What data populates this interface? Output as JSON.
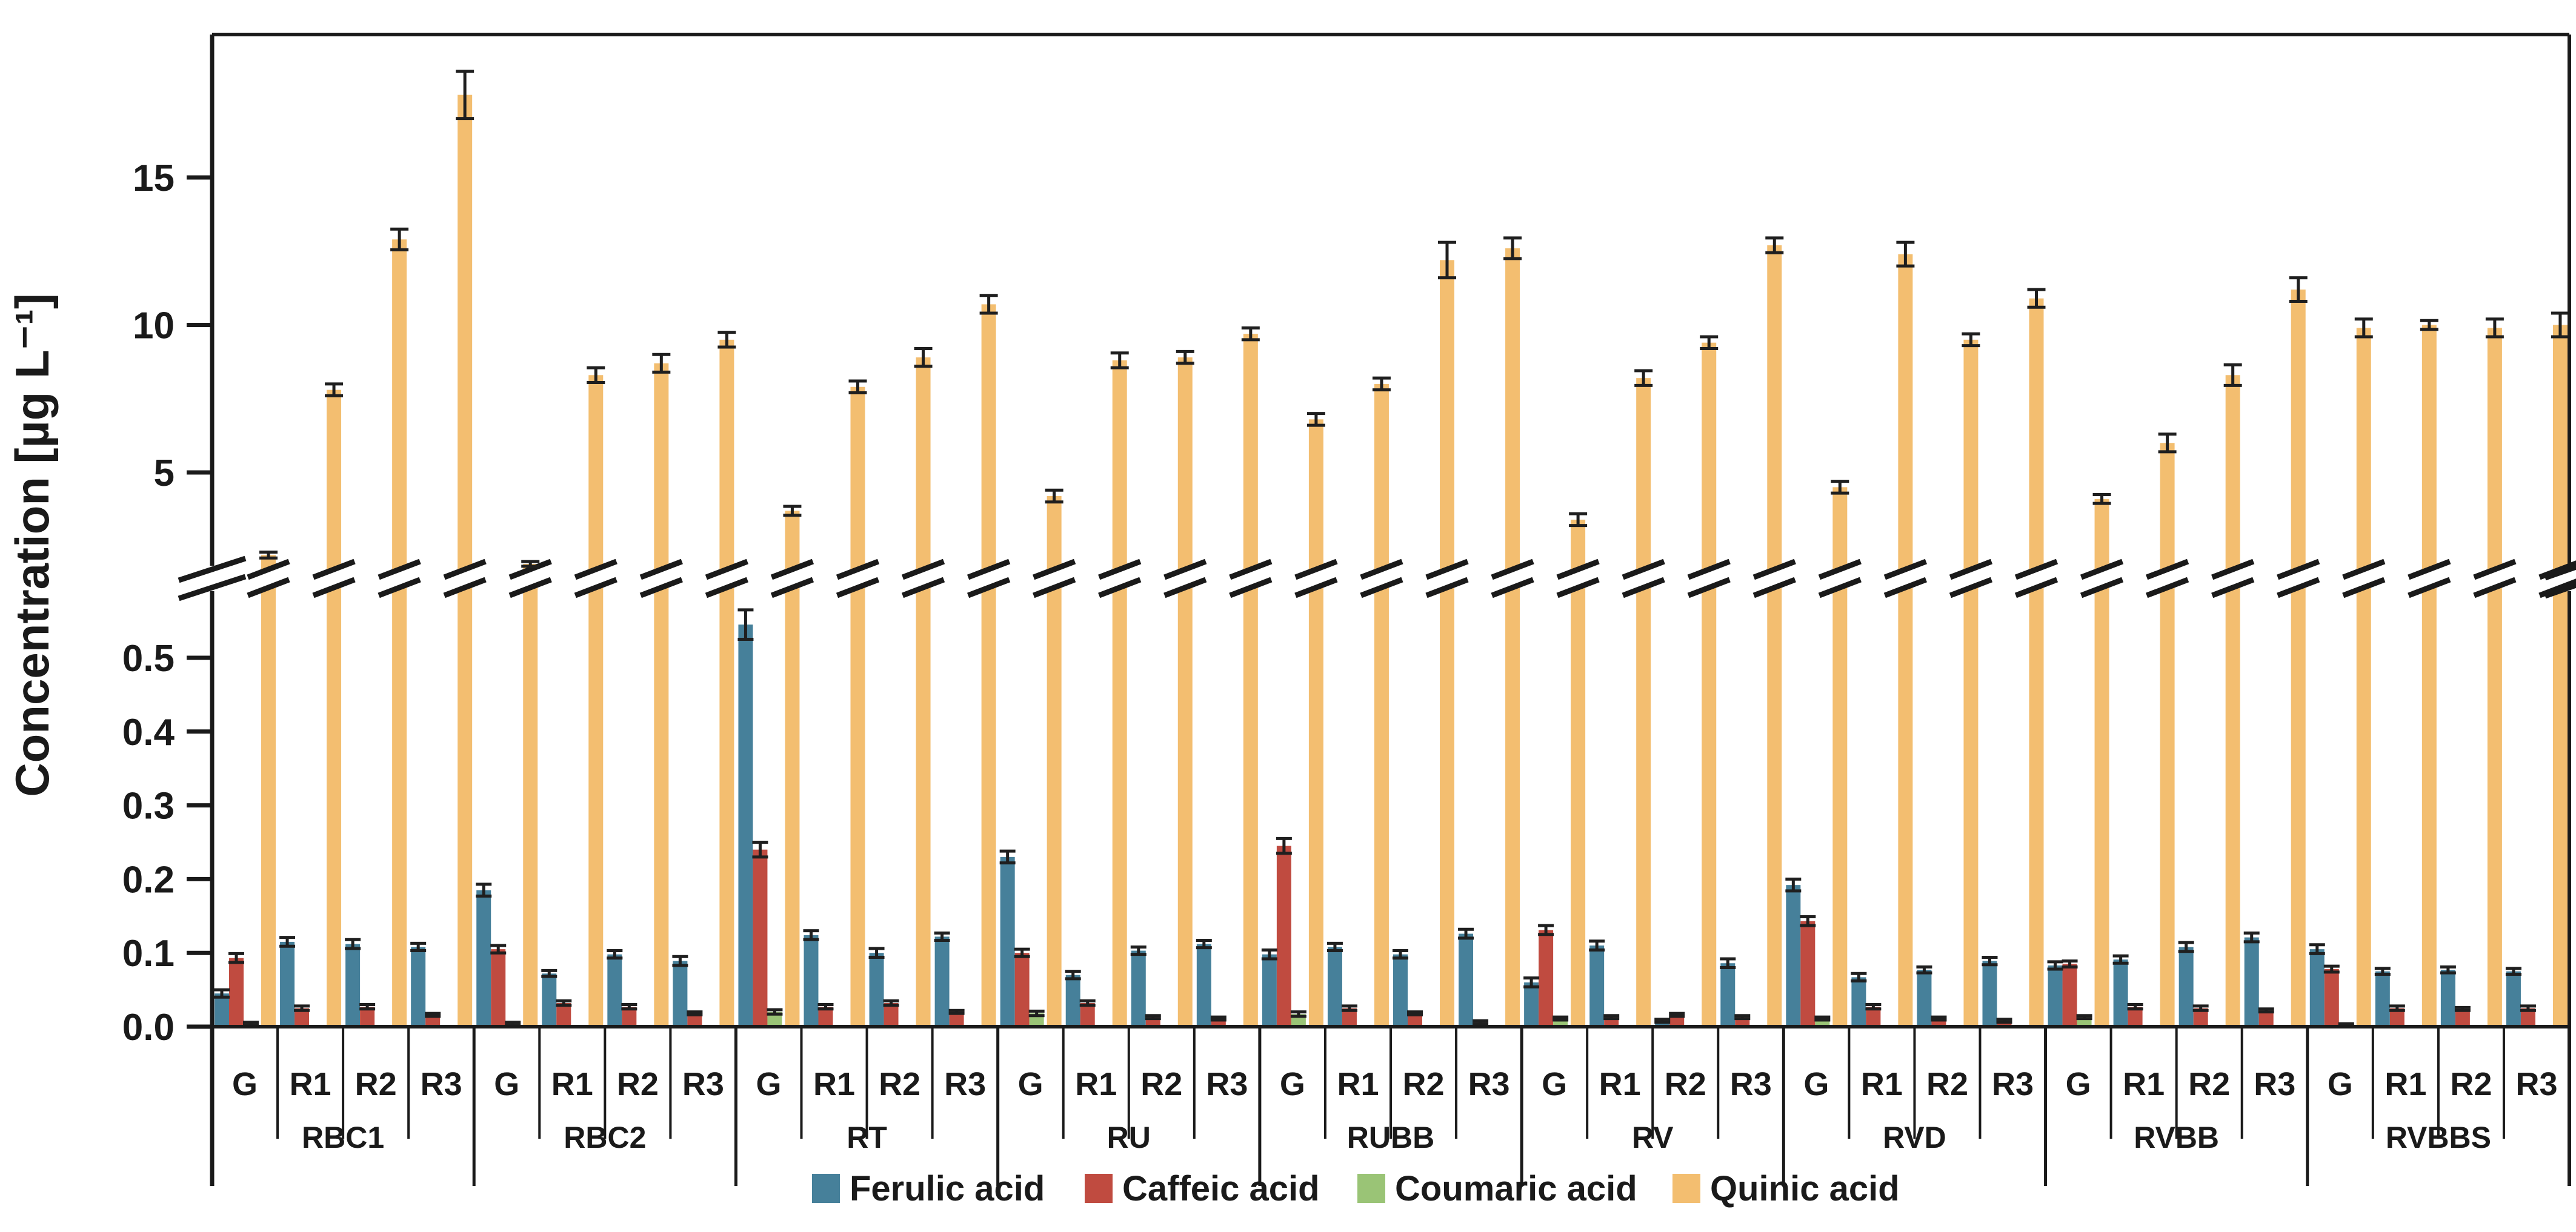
{
  "chart_data": {
    "type": "bar",
    "title": "",
    "ylabel": "Concentration [µg L⁻¹]",
    "xlabel": "",
    "legend_position": "bottom",
    "grid": false,
    "series": [
      "Ferulic acid",
      "Caffeic acid",
      "Coumaric acid",
      "Quinic acid"
    ],
    "colors": [
      "#46809a",
      "#c04b40",
      "#9ac476",
      "#f3be70"
    ],
    "error_bar_color": "#1f1f1f",
    "axis_color": "#1a1a1a",
    "axis_break": {
      "lower_segment_max": 0.59,
      "upper_segment_min": 1.7
    },
    "upper_ticks": [
      5,
      10,
      15
    ],
    "lower_ticks": [
      "0.0",
      "0.1",
      "0.2",
      "0.3",
      "0.4",
      "0.5"
    ],
    "upper_axis_range": [
      1.7,
      19.5
    ],
    "lower_axis_range": [
      0,
      0.59
    ],
    "sample_labels": [
      "G",
      "R1",
      "R2",
      "R3"
    ],
    "groups": [
      {
        "name": "RBC1",
        "samples": [
          {
            "label": "G",
            "values": [
              0.045,
              0.093,
              0.004,
              2.2
            ],
            "errors": [
              0.005,
              0.006,
              0.002,
              0.1
            ]
          },
          {
            "label": "R1",
            "values": [
              0.115,
              0.025,
              0,
              7.8
            ],
            "errors": [
              0.006,
              0.003,
              0,
              0.2
            ]
          },
          {
            "label": "R2",
            "values": [
              0.112,
              0.027,
              0,
              12.9
            ],
            "errors": [
              0.006,
              0.003,
              0,
              0.35
            ]
          },
          {
            "label": "R3",
            "values": [
              0.108,
              0.016,
              0,
              17.8
            ],
            "errors": [
              0.005,
              0.002,
              0,
              0.8
            ]
          }
        ]
      },
      {
        "name": "RBC2",
        "samples": [
          {
            "label": "G",
            "values": [
              0.185,
              0.105,
              0.004,
              1.9
            ],
            "errors": [
              0.008,
              0.005,
              0.002,
              0.08
            ]
          },
          {
            "label": "R1",
            "values": [
              0.072,
              0.032,
              0,
              8.3
            ],
            "errors": [
              0.004,
              0.003,
              0,
              0.25
            ]
          },
          {
            "label": "R2",
            "values": [
              0.098,
              0.027,
              0,
              8.7
            ],
            "errors": [
              0.005,
              0.003,
              0,
              0.3
            ]
          },
          {
            "label": "R3",
            "values": [
              0.089,
              0.018,
              0,
              9.5
            ],
            "errors": [
              0.006,
              0.002,
              0,
              0.25
            ]
          }
        ]
      },
      {
        "name": "RT",
        "samples": [
          {
            "label": "G",
            "values": [
              0.545,
              0.24,
              0.02,
              3.7
            ],
            "errors": [
              0.02,
              0.01,
              0.003,
              0.15
            ]
          },
          {
            "label": "R1",
            "values": [
              0.124,
              0.027,
              0,
              7.9
            ],
            "errors": [
              0.006,
              0.003,
              0,
              0.2
            ]
          },
          {
            "label": "R2",
            "values": [
              0.1,
              0.032,
              0,
              8.9
            ],
            "errors": [
              0.006,
              0.003,
              0,
              0.3
            ]
          },
          {
            "label": "R3",
            "values": [
              0.122,
              0.02,
              0,
              10.7
            ],
            "errors": [
              0.005,
              0.002,
              0,
              0.3
            ]
          }
        ]
      },
      {
        "name": "RU",
        "samples": [
          {
            "label": "G",
            "values": [
              0.23,
              0.1,
              0.018,
              4.2
            ],
            "errors": [
              0.008,
              0.005,
              0.003,
              0.2
            ]
          },
          {
            "label": "R1",
            "values": [
              0.07,
              0.032,
              0,
              8.8
            ],
            "errors": [
              0.005,
              0.003,
              0,
              0.25
            ]
          },
          {
            "label": "R2",
            "values": [
              0.103,
              0.013,
              0,
              8.9
            ],
            "errors": [
              0.005,
              0.002,
              0,
              0.2
            ]
          },
          {
            "label": "R3",
            "values": [
              0.112,
              0.011,
              0,
              9.7
            ],
            "errors": [
              0.005,
              0.002,
              0,
              0.2
            ]
          }
        ]
      },
      {
        "name": "RUBB",
        "samples": [
          {
            "label": "G",
            "values": [
              0.098,
              0.245,
              0.017,
              6.8
            ],
            "errors": [
              0.006,
              0.01,
              0.003,
              0.2
            ]
          },
          {
            "label": "R1",
            "values": [
              0.108,
              0.025,
              0,
              8.0
            ],
            "errors": [
              0.005,
              0.003,
              0,
              0.2
            ]
          },
          {
            "label": "R2",
            "values": [
              0.098,
              0.018,
              0,
              12.2
            ],
            "errors": [
              0.005,
              0.002,
              0,
              0.6
            ]
          },
          {
            "label": "R3",
            "values": [
              0.126,
              0.006,
              0,
              12.6
            ],
            "errors": [
              0.006,
              0.002,
              0,
              0.35
            ]
          }
        ]
      },
      {
        "name": "RV",
        "samples": [
          {
            "label": "G",
            "values": [
              0.06,
              0.131,
              0.011,
              3.4
            ],
            "errors": [
              0.006,
              0.006,
              0.002,
              0.2
            ]
          },
          {
            "label": "R1",
            "values": [
              0.11,
              0.013,
              0,
              8.2
            ],
            "errors": [
              0.006,
              0.002,
              0,
              0.25
            ]
          },
          {
            "label": "R2",
            "values": [
              0.008,
              0.016,
              0,
              9.4
            ],
            "errors": [
              0.002,
              0.002,
              0,
              0.2
            ]
          },
          {
            "label": "R3",
            "values": [
              0.086,
              0.013,
              0,
              12.7
            ],
            "errors": [
              0.006,
              0.002,
              0,
              0.25
            ]
          }
        ]
      },
      {
        "name": "RVD",
        "samples": [
          {
            "label": "G",
            "values": [
              0.192,
              0.143,
              0.011,
              4.5
            ],
            "errors": [
              0.008,
              0.006,
              0.002,
              0.2
            ]
          },
          {
            "label": "R1",
            "values": [
              0.067,
              0.027,
              0,
              12.4
            ],
            "errors": [
              0.005,
              0.003,
              0,
              0.4
            ]
          },
          {
            "label": "R2",
            "values": [
              0.077,
              0.011,
              0,
              9.5
            ],
            "errors": [
              0.004,
              0.002,
              0,
              0.2
            ]
          },
          {
            "label": "R3",
            "values": [
              0.089,
              0.008,
              0,
              10.9
            ],
            "errors": [
              0.005,
              0.002,
              0,
              0.3
            ]
          }
        ]
      },
      {
        "name": "RVBB",
        "samples": [
          {
            "label": "G",
            "values": [
              0.083,
              0.085,
              0.013,
              4.1
            ],
            "errors": [
              0.005,
              0.004,
              0.002,
              0.15
            ]
          },
          {
            "label": "R1",
            "values": [
              0.091,
              0.027,
              0,
              6.0
            ],
            "errors": [
              0.005,
              0.003,
              0,
              0.3
            ]
          },
          {
            "label": "R2",
            "values": [
              0.108,
              0.025,
              0,
              8.3
            ],
            "errors": [
              0.006,
              0.003,
              0,
              0.35
            ]
          },
          {
            "label": "R3",
            "values": [
              0.121,
              0.022,
              0,
              11.2
            ],
            "errors": [
              0.006,
              0.002,
              0,
              0.4
            ]
          }
        ]
      },
      {
        "name": "RVBBS",
        "samples": [
          {
            "label": "G",
            "values": [
              0.105,
              0.078,
              0.003,
              9.9
            ],
            "errors": [
              0.006,
              0.004,
              0.001,
              0.3
            ]
          },
          {
            "label": "R1",
            "values": [
              0.075,
              0.025,
              0,
              10.0
            ],
            "errors": [
              0.004,
              0.003,
              0,
              0.15
            ]
          },
          {
            "label": "R2",
            "values": [
              0.077,
              0.024,
              0,
              9.9
            ],
            "errors": [
              0.004,
              0.002,
              0,
              0.3
            ]
          },
          {
            "label": "R3",
            "values": [
              0.075,
              0.025,
              0,
              10.0
            ],
            "errors": [
              0.004,
              0.003,
              0,
              0.4
            ]
          }
        ]
      }
    ]
  }
}
